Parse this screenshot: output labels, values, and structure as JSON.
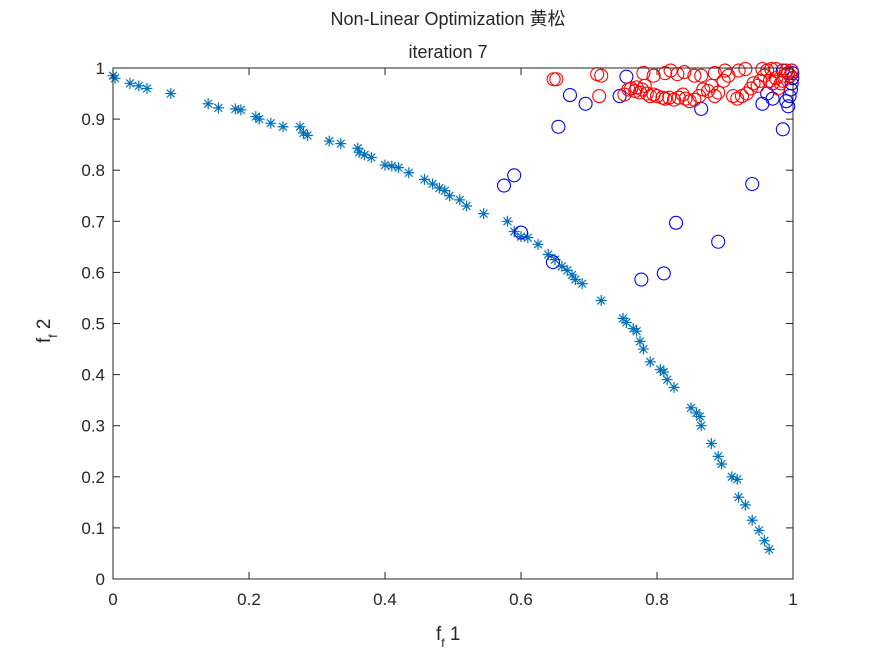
{
  "chart_data": {
    "type": "scatter",
    "title": "Non-Linear Optimization 黄松",
    "subtitle": "iteration 7",
    "xlabel": {
      "main": "f",
      "sub": "f",
      "suffix": " 1"
    },
    "ylabel": {
      "main": "f",
      "sub": "f",
      "suffix": " 2"
    },
    "xlim": [
      0,
      1
    ],
    "ylim": [
      0,
      1
    ],
    "xticks": [
      "0",
      "0.2",
      "0.4",
      "0.6",
      "0.8",
      "1"
    ],
    "yticks": [
      "0",
      "0.1",
      "0.2",
      "0.3",
      "0.4",
      "0.5",
      "0.6",
      "0.7",
      "0.8",
      "0.9",
      "1"
    ],
    "grid": false,
    "colors": {
      "series1": "#0072BD",
      "series2": "#0000FF",
      "series3": "#FF0000",
      "axis": "#262626"
    },
    "series": [
      {
        "marker": "asterisk",
        "color": "#0072BD",
        "points": [
          [
            0.0,
            0.985
          ],
          [
            0.003,
            0.98
          ],
          [
            0.025,
            0.97
          ],
          [
            0.038,
            0.965
          ],
          [
            0.05,
            0.96
          ],
          [
            0.085,
            0.95
          ],
          [
            0.14,
            0.93
          ],
          [
            0.155,
            0.922
          ],
          [
            0.18,
            0.92
          ],
          [
            0.188,
            0.918
          ],
          [
            0.21,
            0.905
          ],
          [
            0.215,
            0.9
          ],
          [
            0.232,
            0.892
          ],
          [
            0.25,
            0.885
          ],
          [
            0.275,
            0.885
          ],
          [
            0.28,
            0.873
          ],
          [
            0.286,
            0.868
          ],
          [
            0.318,
            0.857
          ],
          [
            0.335,
            0.852
          ],
          [
            0.36,
            0.843
          ],
          [
            0.362,
            0.835
          ],
          [
            0.37,
            0.83
          ],
          [
            0.38,
            0.825
          ],
          [
            0.4,
            0.81
          ],
          [
            0.41,
            0.808
          ],
          [
            0.42,
            0.805
          ],
          [
            0.435,
            0.795
          ],
          [
            0.458,
            0.782
          ],
          [
            0.47,
            0.773
          ],
          [
            0.48,
            0.765
          ],
          [
            0.488,
            0.76
          ],
          [
            0.495,
            0.75
          ],
          [
            0.51,
            0.742
          ],
          [
            0.52,
            0.73
          ],
          [
            0.545,
            0.715
          ],
          [
            0.58,
            0.7
          ],
          [
            0.59,
            0.68
          ],
          [
            0.6,
            0.67
          ],
          [
            0.61,
            0.668
          ],
          [
            0.625,
            0.655
          ],
          [
            0.64,
            0.635
          ],
          [
            0.65,
            0.625
          ],
          [
            0.66,
            0.612
          ],
          [
            0.668,
            0.604
          ],
          [
            0.675,
            0.595
          ],
          [
            0.68,
            0.586
          ],
          [
            0.69,
            0.578
          ],
          [
            0.718,
            0.545
          ],
          [
            0.75,
            0.51
          ],
          [
            0.755,
            0.502
          ],
          [
            0.765,
            0.49
          ],
          [
            0.77,
            0.485
          ],
          [
            0.775,
            0.465
          ],
          [
            0.78,
            0.45
          ],
          [
            0.79,
            0.425
          ],
          [
            0.805,
            0.41
          ],
          [
            0.81,
            0.405
          ],
          [
            0.815,
            0.39
          ],
          [
            0.825,
            0.375
          ],
          [
            0.85,
            0.335
          ],
          [
            0.858,
            0.325
          ],
          [
            0.863,
            0.318
          ],
          [
            0.865,
            0.3
          ],
          [
            0.88,
            0.265
          ],
          [
            0.89,
            0.24
          ],
          [
            0.895,
            0.225
          ],
          [
            0.91,
            0.2
          ],
          [
            0.918,
            0.195
          ],
          [
            0.92,
            0.16
          ],
          [
            0.93,
            0.145
          ],
          [
            0.94,
            0.115
          ],
          [
            0.95,
            0.095
          ],
          [
            0.958,
            0.075
          ],
          [
            0.965,
            0.058
          ]
        ]
      },
      {
        "marker": "circle",
        "color": "#0000FF",
        "points": [
          [
            0.575,
            0.77
          ],
          [
            0.59,
            0.79
          ],
          [
            0.6,
            0.678
          ],
          [
            0.647,
            0.62
          ],
          [
            0.655,
            0.885
          ],
          [
            0.672,
            0.947
          ],
          [
            0.695,
            0.93
          ],
          [
            0.745,
            0.945
          ],
          [
            0.755,
            0.983
          ],
          [
            0.777,
            0.586
          ],
          [
            0.81,
            0.598
          ],
          [
            0.828,
            0.697
          ],
          [
            0.865,
            0.92
          ],
          [
            0.89,
            0.66
          ],
          [
            0.94,
            0.773
          ],
          [
            0.955,
            0.93
          ],
          [
            0.962,
            0.95
          ],
          [
            0.97,
            0.94
          ],
          [
            0.985,
            0.88
          ],
          [
            0.99,
            0.935
          ],
          [
            0.993,
            0.925
          ],
          [
            0.995,
            0.945
          ],
          [
            0.997,
            0.958
          ],
          [
            0.998,
            0.97
          ],
          [
            0.999,
            0.98
          ],
          [
            0.999,
            0.99
          ],
          [
            0.985,
            0.995
          ],
          [
            0.998,
            0.995
          ]
        ]
      },
      {
        "marker": "circle",
        "color": "#FF0000",
        "points": [
          [
            0.648,
            0.978
          ],
          [
            0.652,
            0.978
          ],
          [
            0.712,
            0.988
          ],
          [
            0.718,
            0.985
          ],
          [
            0.715,
            0.945
          ],
          [
            0.752,
            0.948
          ],
          [
            0.758,
            0.958
          ],
          [
            0.762,
            0.96
          ],
          [
            0.768,
            0.955
          ],
          [
            0.77,
            0.962
          ],
          [
            0.775,
            0.952
          ],
          [
            0.778,
            0.958
          ],
          [
            0.782,
            0.965
          ],
          [
            0.785,
            0.95
          ],
          [
            0.79,
            0.945
          ],
          [
            0.795,
            0.948
          ],
          [
            0.8,
            0.945
          ],
          [
            0.808,
            0.942
          ],
          [
            0.812,
            0.94
          ],
          [
            0.818,
            0.942
          ],
          [
            0.825,
            0.938
          ],
          [
            0.832,
            0.942
          ],
          [
            0.838,
            0.948
          ],
          [
            0.842,
            0.94
          ],
          [
            0.848,
            0.935
          ],
          [
            0.855,
            0.938
          ],
          [
            0.862,
            0.945
          ],
          [
            0.868,
            0.958
          ],
          [
            0.875,
            0.955
          ],
          [
            0.88,
            0.965
          ],
          [
            0.885,
            0.945
          ],
          [
            0.89,
            0.952
          ],
          [
            0.898,
            0.975
          ],
          [
            0.905,
            0.985
          ],
          [
            0.912,
            0.945
          ],
          [
            0.918,
            0.94
          ],
          [
            0.925,
            0.945
          ],
          [
            0.932,
            0.95
          ],
          [
            0.938,
            0.96
          ],
          [
            0.942,
            0.97
          ],
          [
            0.948,
            0.965
          ],
          [
            0.952,
            0.975
          ],
          [
            0.958,
            0.985
          ],
          [
            0.962,
            0.995
          ],
          [
            0.966,
            0.975
          ],
          [
            0.97,
            0.97
          ],
          [
            0.975,
            0.98
          ],
          [
            0.978,
            0.96
          ],
          [
            0.982,
            0.97
          ],
          [
            0.985,
            0.975
          ],
          [
            0.988,
            0.985
          ],
          [
            0.99,
            0.995
          ],
          [
            0.993,
            0.99
          ],
          [
            0.996,
            0.985
          ],
          [
            0.998,
            0.995
          ],
          [
            0.78,
            0.99
          ],
          [
            0.795,
            0.985
          ],
          [
            0.812,
            0.99
          ],
          [
            0.82,
            0.995
          ],
          [
            0.83,
            0.988
          ],
          [
            0.84,
            0.992
          ],
          [
            0.855,
            0.985
          ],
          [
            0.865,
            0.985
          ],
          [
            0.885,
            0.99
          ],
          [
            0.9,
            0.995
          ],
          [
            0.92,
            0.995
          ],
          [
            0.93,
            0.998
          ],
          [
            0.955,
            0.998
          ],
          [
            0.968,
            0.998
          ],
          [
            0.975,
            0.998
          ]
        ]
      }
    ]
  }
}
